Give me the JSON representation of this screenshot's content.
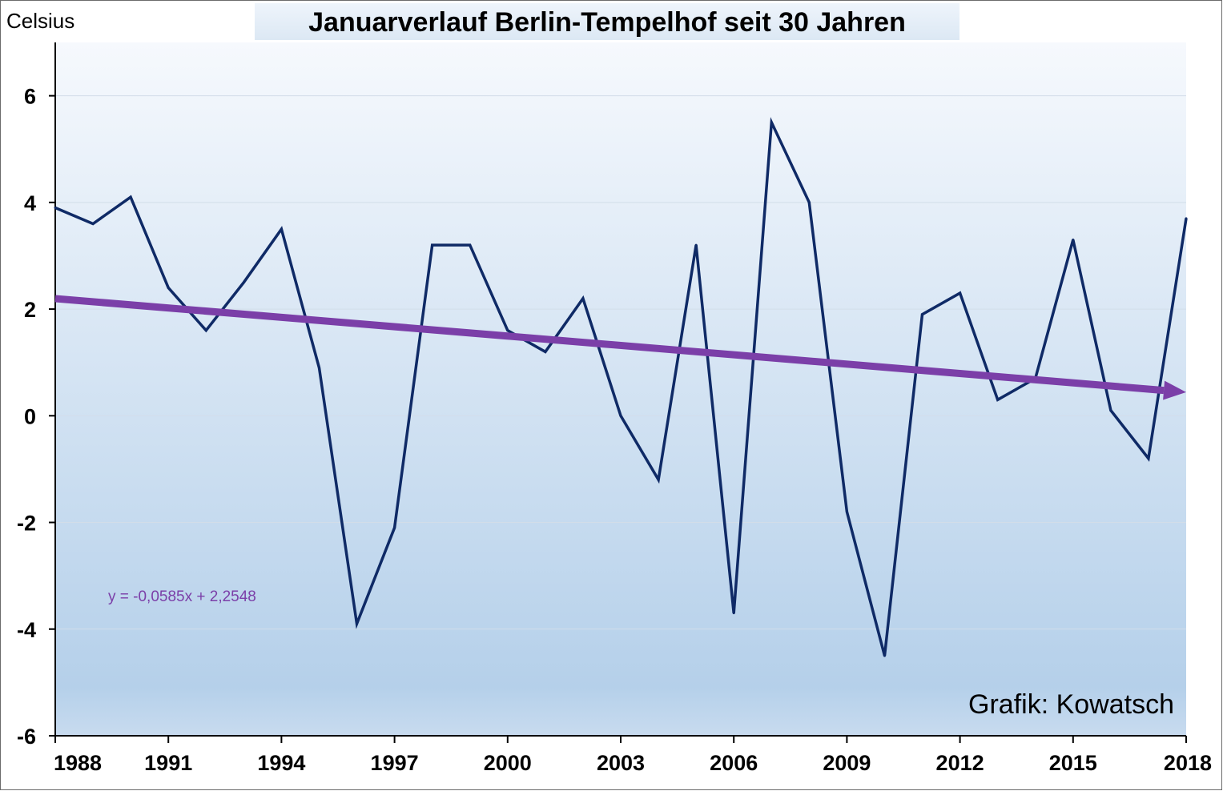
{
  "chart_data": {
    "type": "line",
    "title": "Januarverlauf Berlin-Tempelhof seit 30 Jahren",
    "ylabel": "Celsius",
    "xlabel": "",
    "xlim": [
      1988,
      2018
    ],
    "ylim": [
      -6,
      7
    ],
    "x_ticks": [
      "1988",
      "1991",
      "1994",
      "1997",
      "2000",
      "2003",
      "2006",
      "2009",
      "2012",
      "2015",
      "2018"
    ],
    "y_ticks": [
      "-6",
      "-4",
      "-2",
      "0",
      "2",
      "4",
      "6"
    ],
    "grid": true,
    "series": [
      {
        "color": "#0f2a66",
        "x": [
          1988,
          1989,
          1990,
          1991,
          1992,
          1993,
          1994,
          1995,
          1996,
          1997,
          1998,
          1999,
          2000,
          2001,
          2002,
          2003,
          2004,
          2005,
          2006,
          2007,
          2008,
          2009,
          2010,
          2011,
          2012,
          2013,
          2014,
          2015,
          2016,
          2017,
          2018
        ],
        "values": [
          3.9,
          3.6,
          4.1,
          2.4,
          1.6,
          2.5,
          3.5,
          0.9,
          -3.9,
          -2.1,
          3.2,
          3.2,
          1.6,
          1.2,
          2.2,
          0.0,
          -1.2,
          3.2,
          -3.7,
          5.5,
          4.0,
          -1.8,
          -4.5,
          1.9,
          2.3,
          0.3,
          0.7,
          3.3,
          0.1,
          -0.8,
          3.7
        ]
      }
    ],
    "trendline": {
      "equation": "y = -0,0585x + 2,2548",
      "slope": -0.0585,
      "intercept": 2.2548,
      "color": "#7b3fa8"
    },
    "annotation": "Grafik: Kowatsch",
    "colors": {
      "background_top": "#f6f9fd",
      "background_bottom": "#b5d0ea",
      "title_bg": "#dce8f4"
    }
  }
}
